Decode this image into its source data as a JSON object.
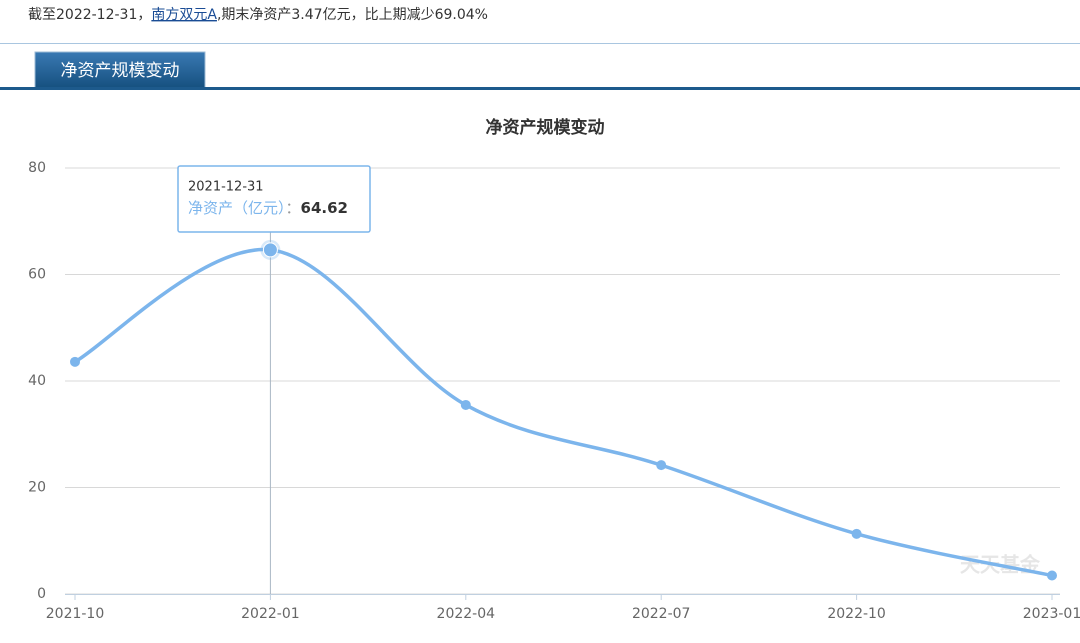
{
  "header": {
    "segments": [
      "截至2022-12-31，",
      "南方双元A",
      ",期末净资产3.47亿元，比上期减少69.04%"
    ]
  },
  "tab": "净资产规模变动",
  "chart_data": {
    "type": "line",
    "title": "净资产规模变动",
    "categories": [
      "2021-10",
      "2022-01",
      "2022-04",
      "2022-07",
      "2022-10",
      "2023-01"
    ],
    "series": [
      {
        "name": "净资产（亿元）",
        "color": "#7cb5ec",
        "values": [
          43.6,
          64.62,
          35.5,
          24.2,
          11.3,
          3.47
        ]
      }
    ],
    "ylim": [
      0,
      80
    ],
    "yticks": [
      0,
      20,
      40,
      60,
      80
    ],
    "grid": true,
    "tooltip": {
      "date": "2021-12-31",
      "separator": "：",
      "index": 1
    }
  },
  "watermark": "天天基金"
}
